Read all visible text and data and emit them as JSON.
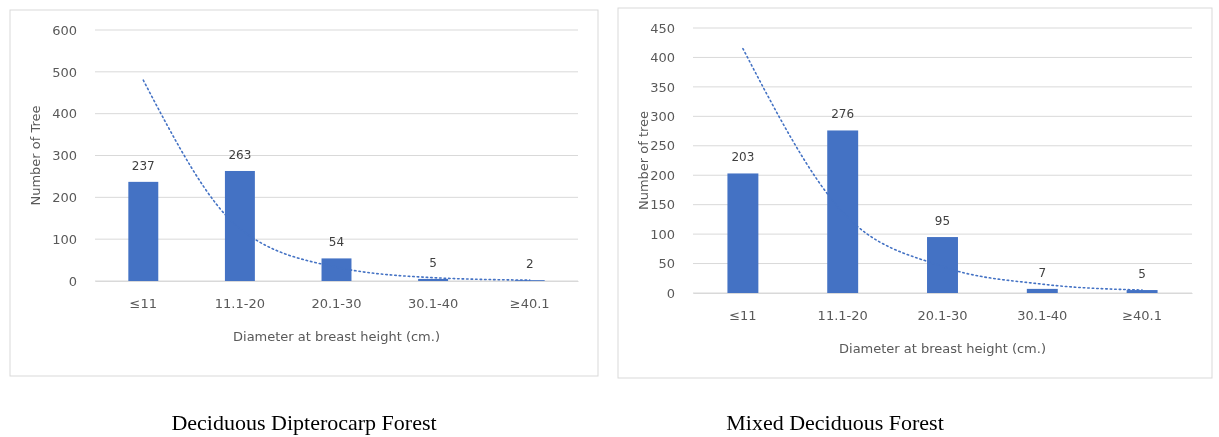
{
  "chart_data": [
    {
      "type": "bar",
      "title": "Deciduous Dipterocarp Forest",
      "xlabel": "Diameter at breast height (cm.)",
      "ylabel": "Number of Tree",
      "categories": [
        "≤11",
        "11.1-20",
        "20.1-30",
        "30.1-40",
        "≥40.1"
      ],
      "ylim": [
        0,
        600
      ],
      "yticks": [
        0,
        100,
        200,
        300,
        400,
        500,
        600
      ],
      "grid": "y",
      "series": [
        {
          "color": "#4472c4",
          "values": [
            237,
            263,
            54,
            5,
            2
          ],
          "value_labels": [
            "237",
            "263",
            "54",
            "5",
            "2"
          ]
        },
        {
          "type": "line",
          "color": "#4472c4",
          "line_style": "dotted",
          "x": [
            "≤11",
            "11.1-20",
            "20.1-30",
            "30.1-40",
            "≥40.1"
          ],
          "values": [
            480,
            125,
            33,
            8,
            2
          ]
        }
      ]
    },
    {
      "type": "bar",
      "title": "Mixed Deciduous Forest",
      "xlabel": "Diameter at breast height (cm.)",
      "ylabel": "Number of tree",
      "categories": [
        "≤11",
        "11.1-20",
        "20.1-30",
        "30.1-40",
        "≥40.1"
      ],
      "ylim": [
        0,
        450
      ],
      "yticks": [
        0,
        50,
        100,
        150,
        200,
        250,
        300,
        350,
        400,
        450
      ],
      "grid": "y",
      "series": [
        {
          "color": "#4472c4",
          "values": [
            203,
            276,
            95,
            7,
            5
          ],
          "value_labels": [
            "203",
            "276",
            "95",
            "7",
            "5"
          ]
        },
        {
          "type": "line",
          "color": "#4472c4",
          "line_style": "dotted",
          "x": [
            "≤11",
            "11.1-20",
            "20.1-30",
            "30.1-40",
            "≥40.1"
          ],
          "values": [
            415,
            137,
            45,
            15,
            5
          ]
        }
      ]
    }
  ]
}
